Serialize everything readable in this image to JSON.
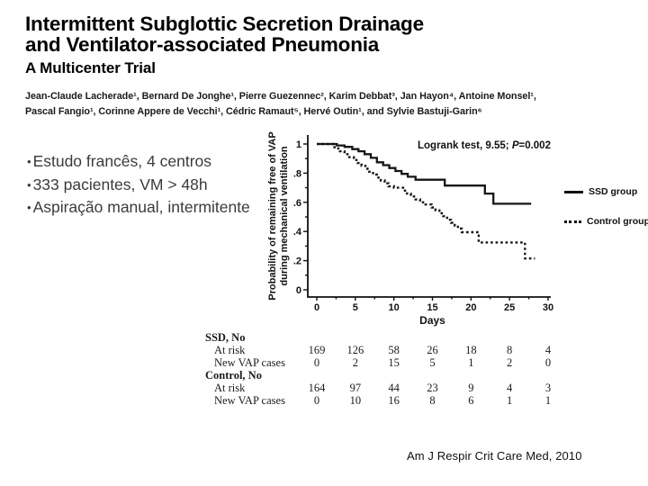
{
  "slide": {
    "title_line1": "Intermittent Subglottic Secretion Drainage",
    "title_line2": "and Ventilator-associated Pneumonia",
    "subtitle": "A Multicenter Trial",
    "authors_line1": "Jean-Claude Lacherade¹, Bernard De Jonghe¹, Pierre Guezennec², Karim Debbat³, Jan Hayon⁴, Antoine Monsel¹,",
    "authors_line2": "Pascal Fangio¹, Corinne Appere de Vecchi¹, Cédric Ramaut⁵, Hervé Outin¹, and Sylvie Bastuji-Garin⁶",
    "bullets": [
      "Estudo francês, 4 centros",
      "333 pacientes, VM > 48h",
      "Aspiração manual, intermitente"
    ],
    "citation": "Am J Respir Crit Care Med, 2010"
  },
  "chart_data": {
    "type": "line",
    "subtype": "kaplan-meier-step",
    "annotation": {
      "text_before_p": "Logrank test, 9.55; ",
      "p_label": "P",
      "text_after_p": "=0.002"
    },
    "xlabel": "Days",
    "ylabel_line1": "Probability of remaining free of VAP",
    "ylabel_line2": "during mechanical ventilation",
    "xlim": [
      0,
      30
    ],
    "ylim": [
      0,
      1
    ],
    "xticks": [
      0,
      5,
      10,
      15,
      20,
      25,
      30
    ],
    "yticks": [
      0,
      0.2,
      0.4,
      0.6,
      0.8,
      1
    ],
    "ytick_labels": [
      "0",
      ".2",
      ".4",
      ".6",
      ".8",
      "1"
    ],
    "grid": false,
    "legend_position": "right-outside",
    "legend": [
      {
        "name": "SSD group",
        "style": "solid"
      },
      {
        "name": "Control group",
        "style": "dotted"
      }
    ],
    "series": [
      {
        "name": "SSD group",
        "style": "solid",
        "start": [
          0,
          1.0
        ],
        "steps": [
          [
            2.6,
            0.99
          ],
          [
            3.6,
            0.98
          ],
          [
            4.6,
            0.965
          ],
          [
            5.4,
            0.95
          ],
          [
            6.2,
            0.93
          ],
          [
            7.0,
            0.905
          ],
          [
            7.8,
            0.875
          ],
          [
            8.6,
            0.855
          ],
          [
            9.4,
            0.835
          ],
          [
            10.2,
            0.815
          ],
          [
            11.0,
            0.795
          ],
          [
            11.8,
            0.775
          ],
          [
            12.8,
            0.755
          ],
          [
            16.6,
            0.715
          ],
          [
            21.8,
            0.66
          ],
          [
            22.9,
            0.59
          ]
        ],
        "end_day": 27.8
      },
      {
        "name": "Control group",
        "style": "dotted",
        "start": [
          0,
          1.0
        ],
        "steps": [
          [
            2.3,
            0.97
          ],
          [
            3.0,
            0.95
          ],
          [
            3.6,
            0.93
          ],
          [
            4.2,
            0.91
          ],
          [
            4.8,
            0.89
          ],
          [
            5.3,
            0.87
          ],
          [
            5.8,
            0.85
          ],
          [
            6.3,
            0.83
          ],
          [
            6.8,
            0.81
          ],
          [
            7.3,
            0.79
          ],
          [
            7.8,
            0.77
          ],
          [
            8.3,
            0.75
          ],
          [
            8.8,
            0.73
          ],
          [
            9.3,
            0.71
          ],
          [
            10.0,
            0.7
          ],
          [
            11.2,
            0.68
          ],
          [
            11.7,
            0.66
          ],
          [
            12.2,
            0.64
          ],
          [
            12.8,
            0.62
          ],
          [
            13.4,
            0.6
          ],
          [
            14.1,
            0.585
          ],
          [
            14.9,
            0.565
          ],
          [
            15.4,
            0.545
          ],
          [
            15.9,
            0.525
          ],
          [
            16.4,
            0.505
          ],
          [
            16.9,
            0.48
          ],
          [
            17.4,
            0.46
          ],
          [
            17.9,
            0.44
          ],
          [
            18.3,
            0.42
          ],
          [
            18.8,
            0.395
          ],
          [
            21.0,
            0.325
          ],
          [
            27.0,
            0.215
          ]
        ],
        "end_day": 28.3
      }
    ]
  },
  "risk_table": {
    "day_columns": [
      0,
      5,
      10,
      15,
      20,
      25,
      30
    ],
    "groups": [
      {
        "header": "SSD, No",
        "rows": [
          {
            "label": "At risk",
            "values": [
              "169",
              "126",
              "58",
              "26",
              "18",
              "8",
              "4"
            ]
          },
          {
            "label": "New VAP cases",
            "values": [
              "0",
              "2",
              "15",
              "5",
              "1",
              "2",
              "0"
            ]
          }
        ]
      },
      {
        "header": "Control, No",
        "rows": [
          {
            "label": "At risk",
            "values": [
              "164",
              "97",
              "44",
              "23",
              "9",
              "4",
              "3"
            ]
          },
          {
            "label": "New VAP cases",
            "values": [
              "0",
              "10",
              "16",
              "8",
              "6",
              "1",
              "1"
            ]
          }
        ]
      }
    ]
  }
}
